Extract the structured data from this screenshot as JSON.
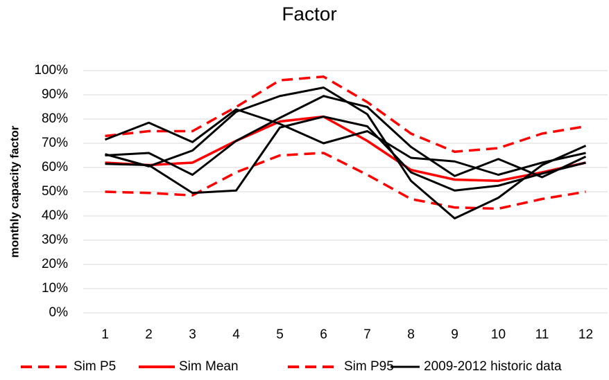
{
  "chart_data": {
    "type": "line",
    "title": "Factor",
    "y_label": "monthly capacity factor",
    "categories": [
      "1",
      "2",
      "3",
      "4",
      "5",
      "6",
      "7",
      "8",
      "9",
      "10",
      "11",
      "12"
    ],
    "ylim": [
      0,
      100
    ],
    "yticks": [
      {
        "value": 0,
        "label": "0%"
      },
      {
        "value": 10,
        "label": "10%"
      },
      {
        "value": 20,
        "label": "20%"
      },
      {
        "value": 30,
        "label": "30%"
      },
      {
        "value": 40,
        "label": "40%"
      },
      {
        "value": 50,
        "label": "50%"
      },
      {
        "value": 60,
        "label": "60%"
      },
      {
        "value": 70,
        "label": "70%"
      },
      {
        "value": 80,
        "label": "80%"
      },
      {
        "value": 90,
        "label": "90%"
      },
      {
        "value": 100,
        "label": "100%"
      }
    ],
    "grid": true,
    "series": [
      {
        "name": "Sim P5",
        "color": "#ff0000",
        "dashed": true,
        "values": [
          50,
          49.5,
          48.5,
          58,
          65,
          66,
          57,
          47,
          43.5,
          43,
          47,
          50
        ]
      },
      {
        "name": "Sim Mean",
        "color": "#ff0000",
        "dashed": false,
        "values": [
          62,
          61,
          62,
          71,
          79,
          81,
          71,
          59,
          55,
          54.5,
          58,
          62
        ]
      },
      {
        "name": "Sim P95",
        "color": "#ff0000",
        "dashed": true,
        "values": [
          73,
          75,
          75,
          85,
          96,
          97.5,
          87,
          74,
          66.5,
          68,
          74,
          77
        ]
      },
      {
        "name": "2009-2012 historic data",
        "color": "#000000",
        "dashed": false,
        "values": [
          71.5,
          78.5,
          70.5,
          84,
          78,
          70,
          75,
          64,
          62.5,
          57,
          62,
          66
        ]
      },
      {
        "color": "#000000",
        "dashed": false,
        "values": [
          65.5,
          60.5,
          67,
          83,
          89.5,
          93,
          82,
          54.5,
          39,
          47.5,
          61,
          69
        ]
      },
      {
        "color": "#000000",
        "dashed": false,
        "values": [
          65,
          66,
          57,
          71,
          80.5,
          89.5,
          85,
          68.5,
          56.5,
          63.5,
          56,
          64.5
        ]
      },
      {
        "color": "#000000",
        "dashed": false,
        "values": [
          61.5,
          61,
          49.5,
          50.5,
          76.5,
          81,
          77,
          58,
          50.5,
          52.5,
          57.5,
          62
        ]
      }
    ]
  }
}
